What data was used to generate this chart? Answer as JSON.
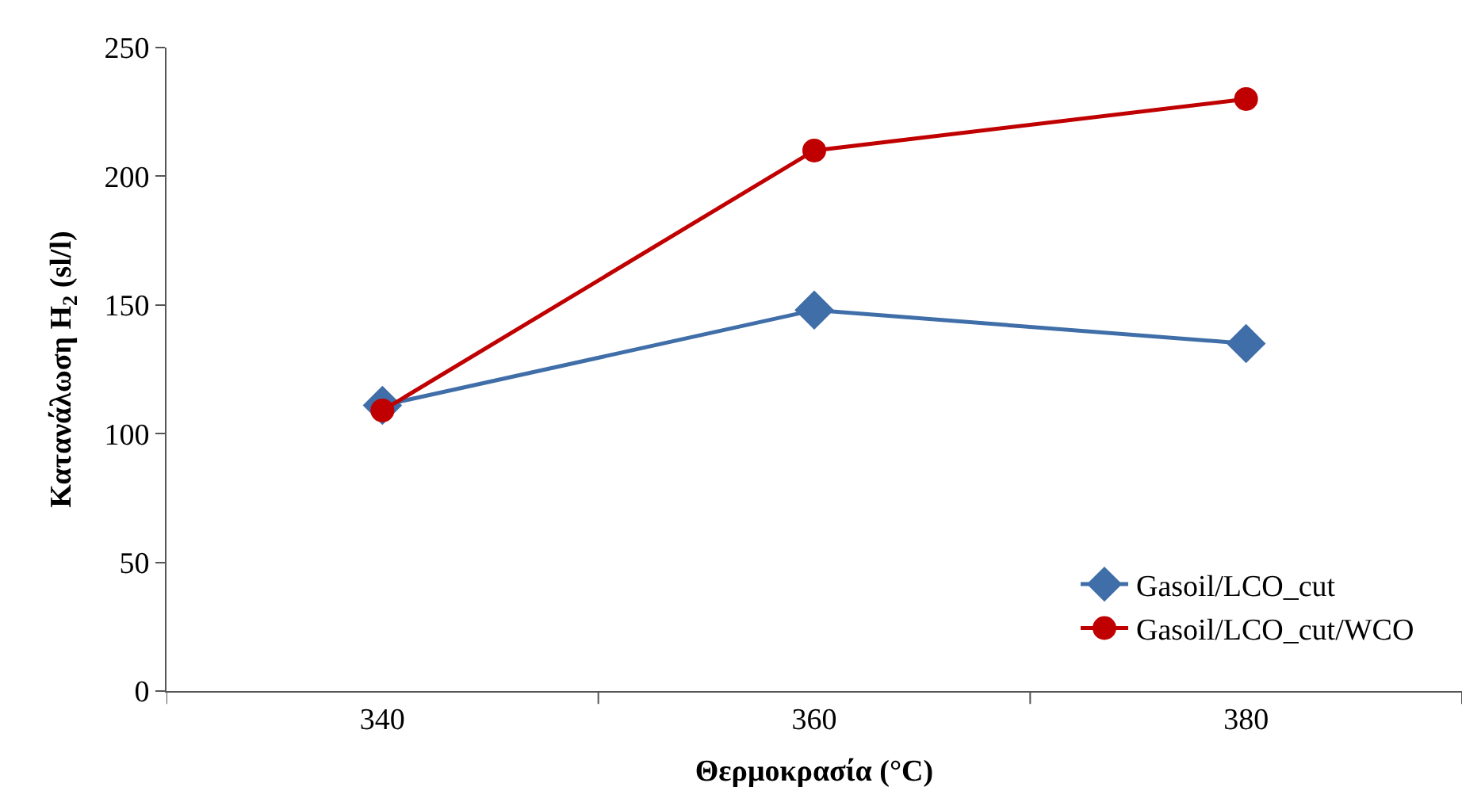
{
  "chart_data": {
    "type": "line",
    "xlabel": "Θερμοκρασία (°C)",
    "ylabel": "Κατανάλωση H$_{2}$ (sl/l)",
    "categories": [
      "340",
      "360",
      "380"
    ],
    "series": [
      {
        "name": "Gasoil/LCO_cut",
        "color": "#3f6ea8",
        "marker": "diamond",
        "values": [
          111,
          148,
          135
        ]
      },
      {
        "name": "Gasoil/LCO_cut/WCO",
        "color": "#c00000",
        "marker": "circle",
        "values": [
          109,
          210,
          230
        ]
      }
    ],
    "ylim": [
      0,
      250
    ],
    "yticks": [
      0,
      50,
      100,
      150,
      200,
      250
    ],
    "legend": "bottom right",
    "line_style": "solid"
  }
}
